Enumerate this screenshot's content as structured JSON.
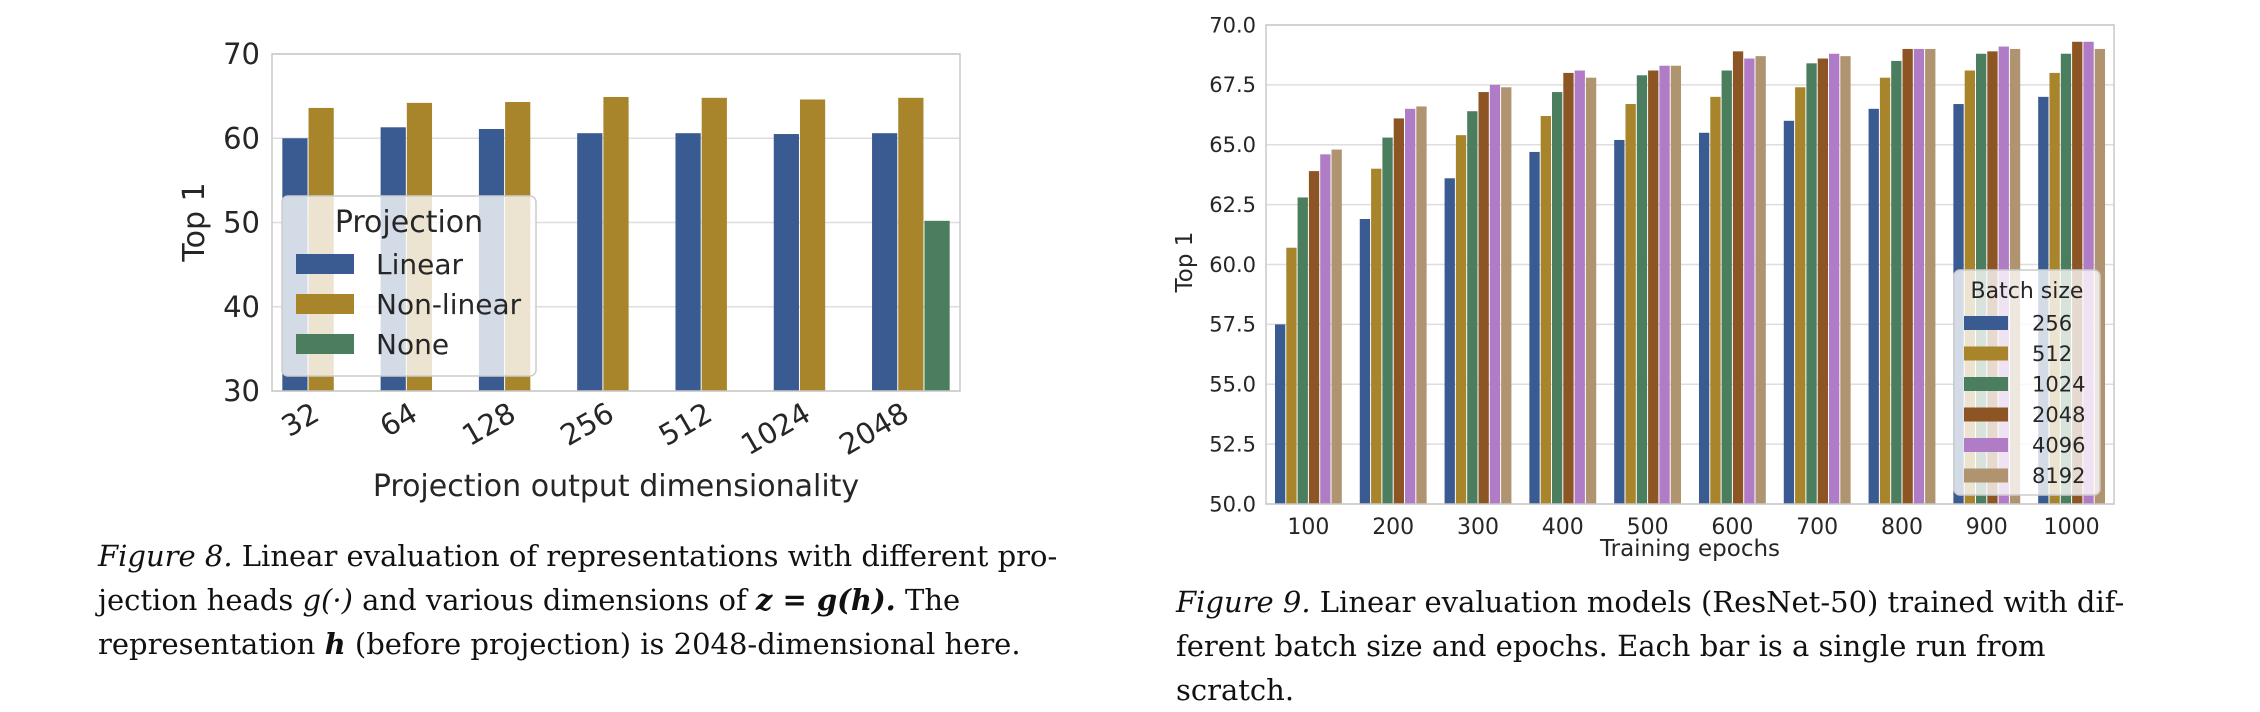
{
  "chart_data": [
    {
      "type": "bar",
      "figure": "8",
      "xlabel": "Projection output dimensionality",
      "ylabel": "Top 1",
      "categories": [
        "32",
        "64",
        "128",
        "256",
        "512",
        "1024",
        "2048"
      ],
      "ylim": [
        30,
        70
      ],
      "yticks": [
        "30",
        "40",
        "50",
        "60",
        "70"
      ],
      "grid": true,
      "legend": {
        "title": "Projection",
        "placement": "center-left"
      },
      "series": [
        {
          "name": "Linear",
          "color": "#3a5a92",
          "values": [
            60.0,
            61.3,
            61.1,
            60.6,
            60.6,
            60.5,
            60.6
          ]
        },
        {
          "name": "Non-linear",
          "color": "#a8842a",
          "values": [
            63.6,
            64.2,
            64.3,
            64.9,
            64.8,
            64.6,
            64.8
          ]
        },
        {
          "name": "None",
          "color": "#4a7e5e",
          "values": [
            null,
            null,
            null,
            null,
            null,
            null,
            50.2
          ]
        }
      ]
    },
    {
      "type": "bar",
      "figure": "9",
      "xlabel": "Training epochs",
      "ylabel": "Top 1",
      "categories": [
        "100",
        "200",
        "300",
        "400",
        "500",
        "600",
        "700",
        "800",
        "900",
        "1000"
      ],
      "ylim": [
        50,
        70
      ],
      "yticks": [
        "50.0",
        "52.5",
        "55.0",
        "57.5",
        "60.0",
        "62.5",
        "65.0",
        "67.5",
        "70.0"
      ],
      "grid": true,
      "legend": {
        "title": "Batch size",
        "placement": "lower-right"
      },
      "series": [
        {
          "name": "256",
          "color": "#3a5a92",
          "values": [
            57.5,
            61.9,
            63.6,
            64.7,
            65.2,
            65.5,
            66.0,
            66.5,
            66.7,
            67.0
          ]
        },
        {
          "name": "512",
          "color": "#a8842a",
          "values": [
            60.7,
            64.0,
            65.4,
            66.2,
            66.7,
            67.0,
            67.4,
            67.8,
            68.1,
            68.0
          ]
        },
        {
          "name": "1024",
          "color": "#4a7e5e",
          "values": [
            62.8,
            65.3,
            66.4,
            67.2,
            67.9,
            68.1,
            68.4,
            68.5,
            68.8,
            68.8
          ]
        },
        {
          "name": "2048",
          "color": "#8d5524",
          "values": [
            63.9,
            66.1,
            67.2,
            68.0,
            68.1,
            68.9,
            68.6,
            69.0,
            68.9,
            69.3
          ]
        },
        {
          "name": "4096",
          "color": "#b07cc6",
          "values": [
            64.6,
            66.5,
            67.5,
            68.1,
            68.3,
            68.6,
            68.8,
            69.0,
            69.1,
            69.3
          ]
        },
        {
          "name": "8192",
          "color": "#b09470",
          "values": [
            64.8,
            66.6,
            67.4,
            67.8,
            68.3,
            68.7,
            68.7,
            69.0,
            69.0,
            69.0
          ]
        }
      ]
    }
  ],
  "captions": {
    "fig8": {
      "label": "Figure 8.",
      "line1": "Linear evaluation of representations with different pro-",
      "line2_a": "jection heads",
      "line2_math": "g(·)",
      "line2_b": "and various dimensions of",
      "line2_math2": "z = g(h).",
      "line2_c": "The",
      "line3_a": "representation",
      "line3_math": "h",
      "line3_b": "(before projection) is 2048-dimensional here."
    },
    "fig9": {
      "label": "Figure 9.",
      "line1": "Linear evaluation models (ResNet-50) trained with dif-",
      "line2": "ferent batch size and epochs. Each bar is a single run from scratch."
    }
  }
}
